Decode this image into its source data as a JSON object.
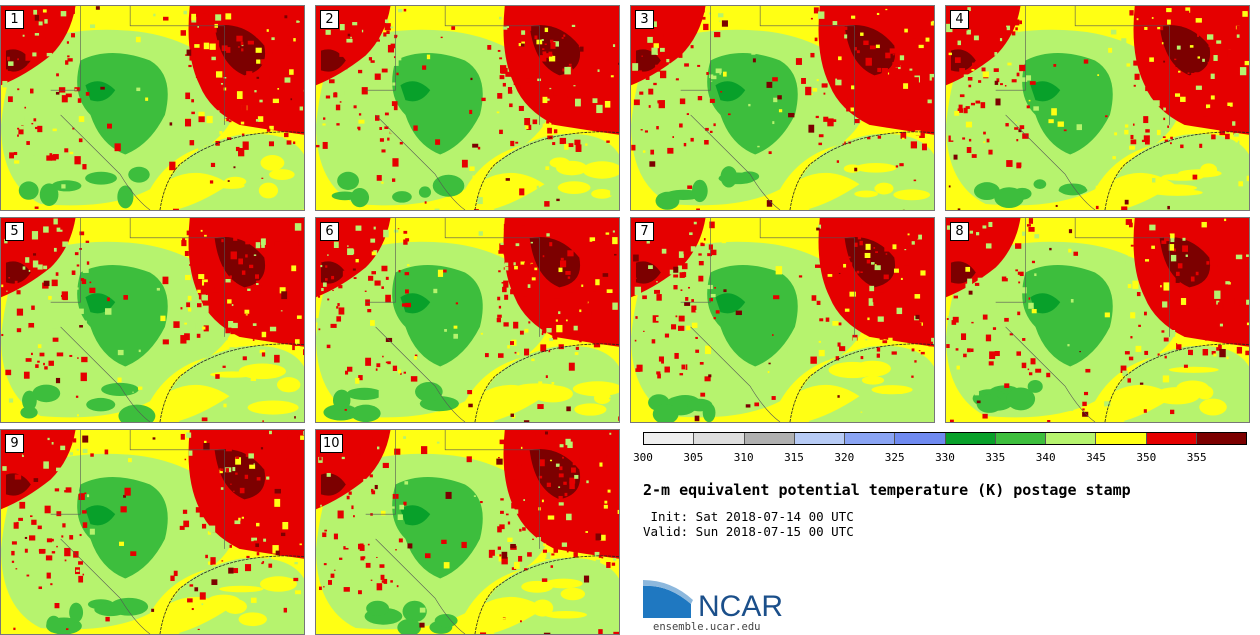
{
  "members": [
    {
      "label": "1"
    },
    {
      "label": "2"
    },
    {
      "label": "3"
    },
    {
      "label": "4"
    },
    {
      "label": "5"
    },
    {
      "label": "6"
    },
    {
      "label": "7"
    },
    {
      "label": "8"
    },
    {
      "label": "9"
    },
    {
      "label": "10"
    }
  ],
  "colorbar": {
    "colors": [
      "#efefef",
      "#dedede",
      "#b0b0b0",
      "#b7cbf5",
      "#8aa4f3",
      "#6f8af0",
      "#08a02a",
      "#3dbe3d",
      "#b6f36e",
      "#ffff14",
      "#e50000",
      "#7c0000"
    ],
    "ticks": [
      "300",
      "305",
      "310",
      "315",
      "320",
      "325",
      "330",
      "335",
      "340",
      "345",
      "350",
      "355"
    ]
  },
  "title": "2-m equivalent potential temperature (K) postage stamp",
  "init": " Init: Sat 2018-07-14 00 UTC",
  "valid": "Valid: Sun 2018-07-15 00 UTC",
  "logo_text": "NCAR",
  "site": "ensemble.ucar.edu"
}
